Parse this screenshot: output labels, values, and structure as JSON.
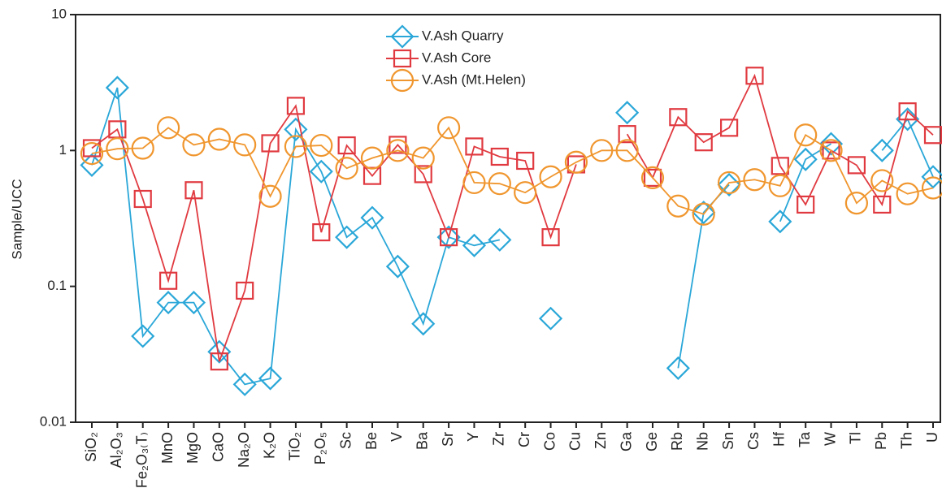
{
  "chart_data": {
    "type": "line",
    "log_y": true,
    "ylabel": "Sample/UCC",
    "ylim": [
      0.01,
      10
    ],
    "yticks": [
      0.01,
      0.1,
      1,
      10
    ],
    "legend": "top",
    "categories": [
      "SiO₂",
      "Al₂O₃",
      "Fe₂O₃₍T₎",
      "MnO",
      "MgO",
      "CaO",
      "Na₂O",
      "K₂O",
      "TiO₂",
      "P₂O₅",
      "Sc",
      "Be",
      "V",
      "Ba",
      "Sr",
      "Y",
      "Zr",
      "Cr",
      "Co",
      "Cu",
      "Zn",
      "Ga",
      "Ge",
      "Rb",
      "Nb",
      "Sn",
      "Cs",
      "Hf",
      "Ta",
      "W",
      "Tl",
      "Pb",
      "Th",
      "U"
    ],
    "series": [
      {
        "name": "V.Ash Quarry",
        "color": "#2aa7d8",
        "marker": "diamond",
        "values": [
          0.78,
          2.9,
          0.043,
          0.076,
          0.076,
          0.033,
          0.019,
          0.021,
          1.43,
          0.7,
          0.23,
          0.32,
          0.14,
          0.053,
          0.23,
          0.2,
          0.22,
          null,
          0.058,
          null,
          null,
          1.9,
          null,
          0.025,
          0.35,
          0.56,
          null,
          0.3,
          0.86,
          1.12,
          null,
          1.0,
          1.7,
          0.64
        ]
      },
      {
        "name": "V.Ash Core",
        "color": "#e03a40",
        "marker": "square",
        "values": [
          1.04,
          1.43,
          0.44,
          0.11,
          0.51,
          0.028,
          0.093,
          1.13,
          2.13,
          0.25,
          1.09,
          0.65,
          1.1,
          0.67,
          0.23,
          1.07,
          0.9,
          0.84,
          0.23,
          0.79,
          null,
          1.32,
          0.63,
          1.76,
          1.15,
          1.47,
          3.55,
          0.77,
          0.4,
          1.0,
          0.78,
          0.4,
          1.94,
          1.3
        ]
      },
      {
        "name": "V.Ash (Mt.Helen)",
        "color": "#f0962e",
        "marker": "circle",
        "values": [
          0.95,
          1.03,
          1.04,
          1.47,
          1.1,
          1.21,
          1.1,
          0.46,
          1.07,
          1.09,
          0.74,
          0.88,
          1.0,
          0.88,
          1.47,
          0.58,
          0.57,
          0.49,
          0.64,
          0.82,
          1.0,
          1.0,
          0.63,
          0.39,
          0.34,
          0.58,
          0.61,
          0.55,
          1.3,
          1.0,
          0.41,
          0.6,
          0.48,
          0.53
        ]
      }
    ]
  }
}
